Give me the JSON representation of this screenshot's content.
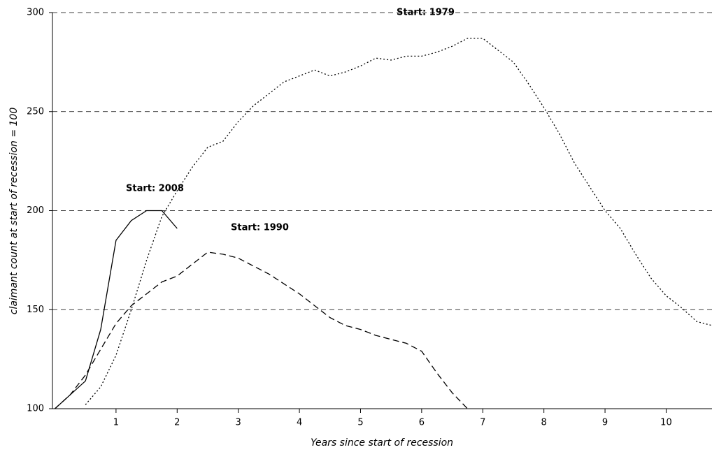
{
  "chart_data": {
    "type": "line",
    "xlabel": "Years since start of recession",
    "ylabel": "claimant count at start of recession = 100",
    "x": [
      0,
      0.25,
      0.5,
      0.75,
      1,
      1.25,
      1.5,
      1.75,
      2,
      2.25,
      2.5,
      2.75,
      3,
      3.25,
      3.5,
      3.75,
      4,
      4.25,
      4.5,
      4.75,
      5,
      5.25,
      5.5,
      5.75,
      6,
      6.25,
      6.5,
      6.75,
      7,
      7.25,
      7.5,
      7.75,
      8,
      8.25,
      8.5,
      8.75,
      9,
      9.25,
      9.5,
      9.75,
      10,
      10.25,
      10.5,
      10.75
    ],
    "series": [
      {
        "name": "Start: 2008",
        "color": "#000000",
        "style": "solid",
        "values": [
          100,
          107,
          114,
          140,
          185,
          195,
          200,
          200,
          191,
          null,
          null,
          null,
          null,
          null,
          null,
          null,
          null,
          null,
          null,
          null,
          null,
          null,
          null,
          null,
          null,
          null,
          null,
          null,
          null,
          null,
          null,
          null,
          null,
          null,
          null,
          null,
          null,
          null,
          null,
          null,
          null,
          null,
          null,
          null
        ]
      },
      {
        "name": "Start: 1990",
        "color": "#000000",
        "style": "dashed",
        "values": [
          100,
          107,
          117,
          130,
          143,
          152,
          158,
          164,
          167,
          173,
          179,
          178,
          176,
          172,
          168,
          163,
          158,
          152,
          146,
          142,
          140,
          137,
          135,
          133,
          129,
          118,
          108,
          100,
          null,
          null,
          null,
          null,
          null,
          null,
          null,
          null,
          null,
          null,
          null,
          null,
          null,
          null,
          null,
          null
        ]
      },
      {
        "name": "Start: 1979",
        "color": "#000000",
        "style": "dotted",
        "values": [
          null,
          null,
          102,
          111,
          127,
          150,
          175,
          197,
          210,
          222,
          232,
          235,
          245,
          253,
          259,
          265,
          268,
          271,
          268,
          270,
          273,
          277,
          276,
          278,
          278,
          280,
          283,
          287,
          287,
          281,
          275,
          264,
          252,
          239,
          224,
          212,
          200,
          191,
          178,
          166,
          157,
          151,
          144,
          142
        ]
      }
    ],
    "xlim": [
      -0.04,
      10.75
    ],
    "xticks": [
      1,
      2,
      3,
      4,
      5,
      6,
      7,
      8,
      9,
      10
    ],
    "ylim": [
      100,
      300
    ],
    "yticks": [
      100,
      150,
      200,
      250,
      300
    ],
    "grid": true
  }
}
